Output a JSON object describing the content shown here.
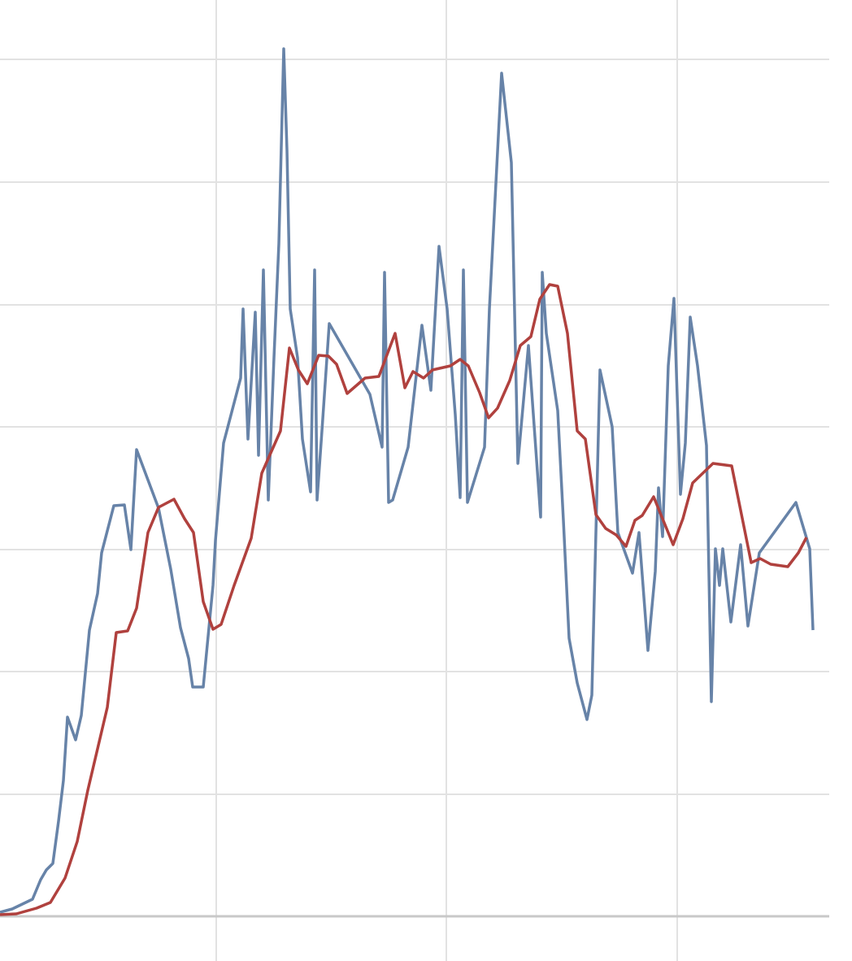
{
  "chart_data": {
    "type": "line",
    "xlim": [
      0,
      1048
    ],
    "xticks": [
      266,
      549,
      833
    ],
    "ylim": [
      0,
      1127
    ],
    "yticks": [
      0,
      150,
      301,
      451,
      602,
      752,
      903,
      1054
    ],
    "grid": true,
    "series": [
      {
        "color": "#6783a8",
        "x": [
          0,
          15,
          40,
          50,
          57,
          65,
          72,
          78,
          83,
          93,
          100,
          110,
          120,
          125,
          140,
          153,
          161,
          168,
          195,
          210,
          222,
          232,
          237,
          250,
          262,
          265,
          270,
          275,
          296,
          299,
          305,
          314,
          318,
          324,
          330,
          337,
          343,
          349,
          353,
          357,
          366,
          372,
          382,
          387,
          390,
          396,
          405,
          455,
          470,
          473,
          478,
          483,
          502,
          519,
          530,
          540,
          550,
          560,
          566,
          570,
          575,
          596,
          602,
          617,
          629,
          637,
          650,
          665,
          667,
          672,
          686,
          693,
          700,
          710,
          722,
          728,
          738,
          753,
          760,
          778,
          786,
          797,
          806,
          810,
          815,
          822,
          829,
          837,
          843,
          849,
          858,
          869,
          875,
          880,
          885,
          889,
          899,
          911,
          920,
          934,
          979,
          996,
          1000
        ],
        "values": [
          5,
          9,
          21,
          45,
          57,
          65,
          117,
          167,
          245,
          217,
          247,
          352,
          397,
          447,
          505,
          506,
          451,
          574,
          502,
          427,
          355,
          317,
          282,
          282,
          407,
          462,
          522,
          582,
          662,
          747,
          587,
          743,
          567,
          795,
          512,
          687,
          827,
          1067,
          942,
          747,
          687,
          587,
          522,
          795,
          512,
          597,
          729,
          642,
          577,
          792,
          509,
          512,
          577,
          727,
          647,
          824,
          747,
          617,
          515,
          795,
          509,
          577,
          747,
          1037,
          927,
          557,
          702,
          491,
          792,
          717,
          622,
          487,
          342,
          287,
          242,
          272,
          672,
          602,
          472,
          422,
          472,
          327,
          424,
          527,
          467,
          677,
          760,
          519,
          582,
          737,
          677,
          579,
          264,
          452,
          407,
          452,
          362,
          457,
          357,
          447,
          509,
          452,
          352
        ]
      },
      {
        "color": "#b0413e",
        "x": [
          0,
          20,
          45,
          62,
          80,
          95,
          108,
          132,
          143,
          157,
          168,
          182,
          195,
          214,
          227,
          238,
          250,
          262,
          272,
          288,
          309,
          322,
          345,
          356,
          367,
          378,
          392,
          404,
          414,
          427,
          449,
          466,
          486,
          498,
          508,
          521,
          532,
          554,
          566,
          576,
          590,
          601,
          612,
          627,
          640,
          653,
          664,
          676,
          686,
          698,
          710,
          720,
          733,
          745,
          758,
          770,
          781,
          790,
          804,
          828,
          840,
          852,
          877,
          900,
          924,
          935,
          948,
          969,
          982,
          992
        ],
        "values": [
          2,
          3,
          10,
          17,
          47,
          92,
          155,
          257,
          349,
          351,
          379,
          472,
          503,
          513,
          489,
          472,
          387,
          353,
          359,
          407,
          465,
          545,
          597,
          699,
          672,
          655,
          690,
          689,
          679,
          643,
          662,
          664,
          717,
          650,
          670,
          662,
          672,
          677,
          685,
          677,
          644,
          613,
          625,
          659,
          702,
          713,
          759,
          777,
          775,
          717,
          597,
          587,
          494,
          477,
          469,
          455,
          487,
          493,
          516,
          457,
          489,
          533,
          557,
          554,
          435,
          440,
          433,
          430,
          447,
          466
        ]
      }
    ]
  }
}
